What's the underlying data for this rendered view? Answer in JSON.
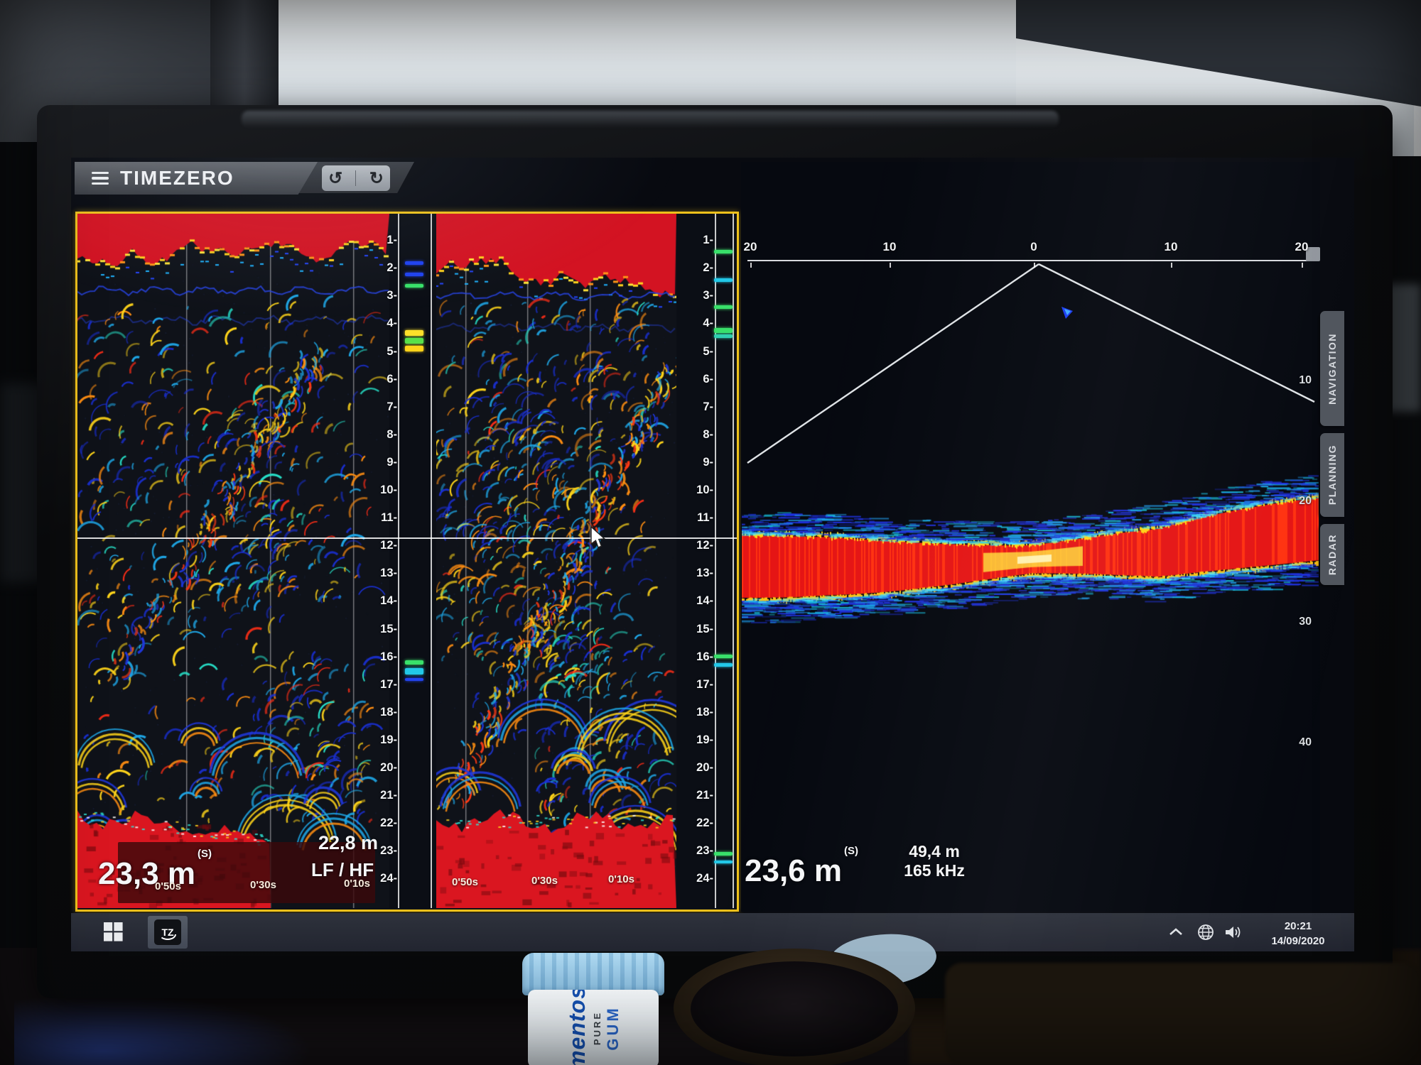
{
  "app": {
    "title": "TIMEZERO",
    "undo_glyph": "↺",
    "redo_glyph": "↻"
  },
  "sounder_left": {
    "selected": true,
    "depth_scale": {
      "unit": "m",
      "min": 1,
      "max": 24
    },
    "lf": {
      "depth": "23,3 m",
      "depth_suffix": "(S)",
      "time_labels": [
        "0'50s",
        "0'30s",
        "0'10s"
      ]
    },
    "hf": {
      "depth": "22,8 m",
      "mode_label": "LF / HF",
      "time_labels": [
        "0'50s",
        "0'30s",
        "0'10s"
      ]
    }
  },
  "sounder_right": {
    "depth": "23,6 m",
    "depth_suffix": "(S)",
    "range": "49,4 m",
    "frequency": "165 kHz",
    "top_scale_labels": [
      "20",
      "10",
      "0",
      "10",
      "20"
    ],
    "depth_scale_labels": [
      "10",
      "20",
      "30",
      "40"
    ]
  },
  "side_tabs": [
    {
      "label": "NAVIGATION"
    },
    {
      "label": "PLANNING"
    },
    {
      "label": "RADAR"
    }
  ],
  "taskbar": {
    "app_icon_label": "TZ",
    "tray_time": "20:21",
    "tray_date": "14/09/2020"
  },
  "desk_objects": {
    "gum_brand": "mentos",
    "gum_line": "PURE",
    "gum_type": "GUM"
  },
  "colors": {
    "selection_yellow": "#eec11b",
    "echo_red": "#d31322",
    "echo_yellow": "#ffd41a",
    "echo_blue": "#2134e8",
    "echo_cyan": "#1fc8e8",
    "screen_bg": "#080a10",
    "taskbar_bg": "#2a2e38"
  }
}
